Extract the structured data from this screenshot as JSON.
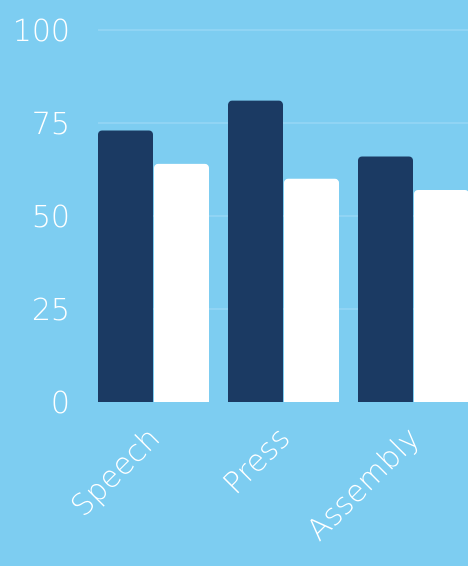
{
  "chart_data": {
    "type": "bar",
    "categories": [
      "Speech",
      "Press",
      "Assembly"
    ],
    "series": [
      {
        "values": [
          73,
          81,
          66
        ]
      },
      {
        "values": [
          64,
          60,
          57
        ]
      }
    ],
    "ylim": [
      0,
      100
    ],
    "yticks": [
      "0",
      "25",
      "50",
      "75",
      "100"
    ],
    "grid": true,
    "legend": "none",
    "colors": {
      "background": "#7dcdf1",
      "series": [
        "#1b3a63",
        "#ffffff"
      ],
      "grid": "#a2dcf6",
      "text": "#ffffff"
    }
  }
}
